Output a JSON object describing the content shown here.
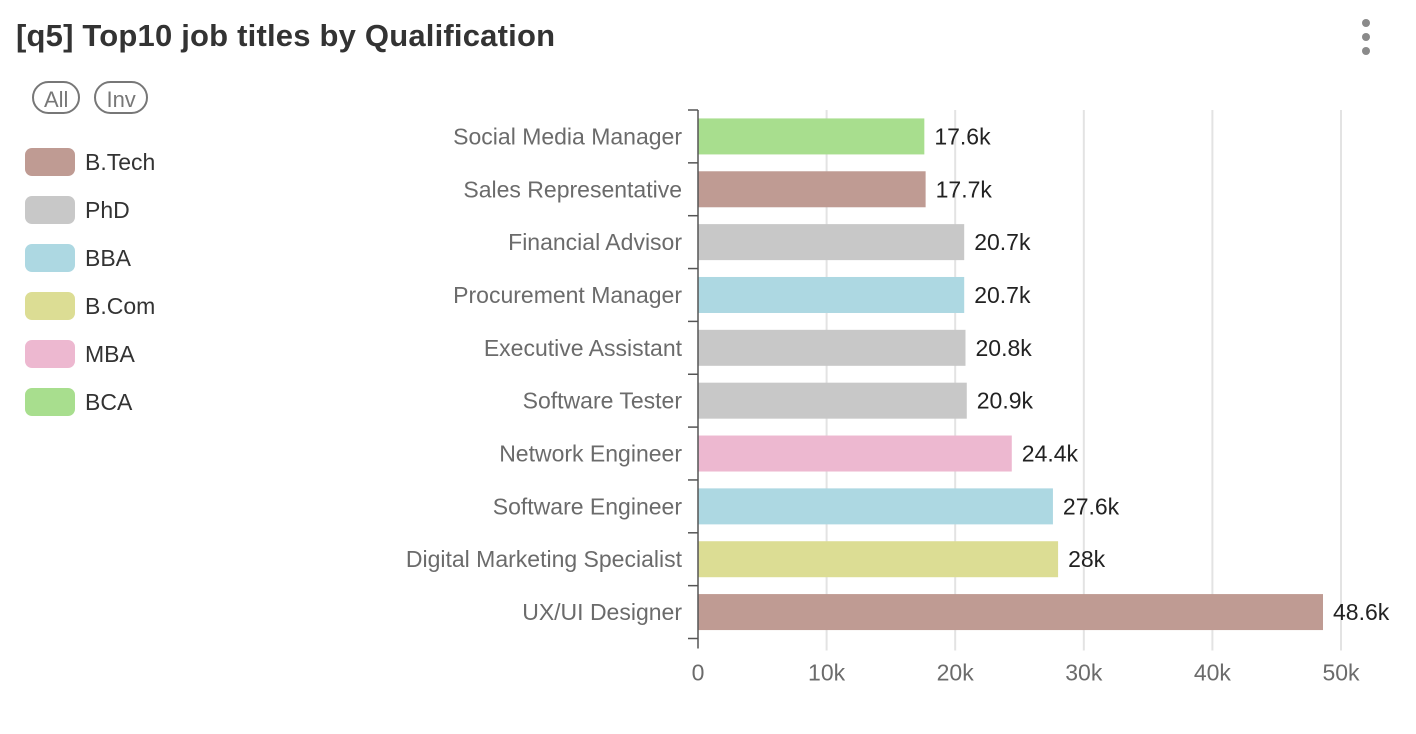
{
  "title": "[q5] Top10 job titles by Qualification",
  "toggles": {
    "all": "All",
    "inv": "Inv"
  },
  "menu_icon": "kebab-vertical-icon",
  "legend": [
    {
      "label": "B.Tech",
      "color": "#bf9b93"
    },
    {
      "label": "PhD",
      "color": "#c8c8c8"
    },
    {
      "label": "BBA",
      "color": "#add8e2"
    },
    {
      "label": "B.Com",
      "color": "#dcdd94"
    },
    {
      "label": "MBA",
      "color": "#edb8d0"
    },
    {
      "label": "BCA",
      "color": "#a8de8e"
    }
  ],
  "chart_data": {
    "type": "bar",
    "orientation": "horizontal",
    "categories": [
      "Social Media Manager",
      "Sales Representative",
      "Financial Advisor",
      "Procurement Manager",
      "Executive Assistant",
      "Software Tester",
      "Network Engineer",
      "Software Engineer",
      "Digital Marketing Specialist",
      "UX/UI Designer"
    ],
    "values": [
      17600,
      17700,
      20700,
      20700,
      20800,
      20900,
      24400,
      27600,
      28000,
      48600
    ],
    "value_labels": [
      "17.6k",
      "17.7k",
      "20.7k",
      "20.7k",
      "20.8k",
      "20.9k",
      "24.4k",
      "27.6k",
      "28k",
      "48.6k"
    ],
    "qualification": [
      "BCA",
      "B.Tech",
      "PhD",
      "BBA",
      "PhD",
      "PhD",
      "MBA",
      "BBA",
      "B.Com",
      "B.Tech"
    ],
    "xlim": [
      0,
      50000
    ],
    "xticks": [
      0,
      10000,
      20000,
      30000,
      40000,
      50000
    ],
    "xtick_labels": [
      "0",
      "10k",
      "20k",
      "30k",
      "40k",
      "50k"
    ],
    "grid": true,
    "legend_position": "left"
  }
}
